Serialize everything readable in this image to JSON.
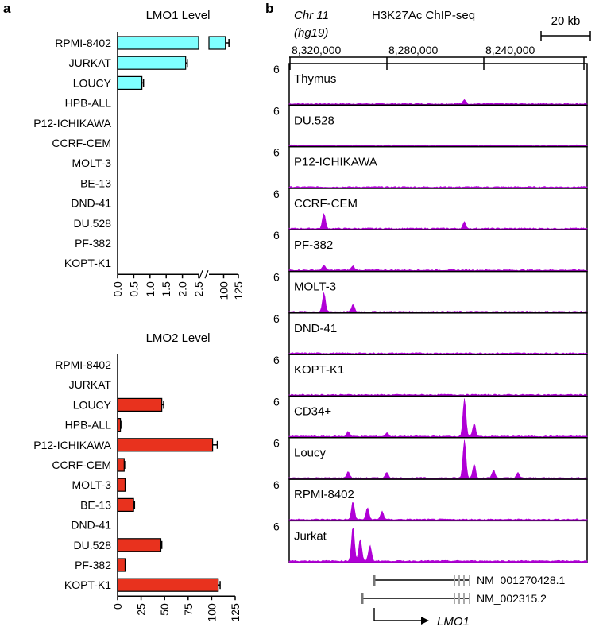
{
  "panel_a_label": "a",
  "panel_b_label": "b",
  "chart_data": [
    {
      "type": "bar",
      "orientation": "horizontal",
      "title": "LMO1 Level",
      "categories": [
        "RPMI-8402",
        "JURKAT",
        "LOUCY",
        "HPB-ALL",
        "P12-ICHIKAWA",
        "CCRF-CEM",
        "MOLT-3",
        "BE-13",
        "DND-41",
        "DU.528",
        "PF-382",
        "KOPT-K1"
      ],
      "values": [
        103,
        2.1,
        0.75,
        0,
        0,
        0,
        0,
        0,
        0,
        0,
        0,
        0
      ],
      "errors": [
        6,
        0.05,
        0.05,
        0,
        0,
        0,
        0,
        0,
        0,
        0,
        0,
        0
      ],
      "bar_color": "#7fffff",
      "axis_break": {
        "lower_range": [
          0,
          2.5
        ],
        "upper_range": [
          75,
          125
        ]
      },
      "xticks": [
        "0.0",
        "0.5",
        "1.0",
        "1.5",
        "2.0",
        "2.5",
        "100",
        "125"
      ],
      "grid": false
    },
    {
      "type": "bar",
      "orientation": "horizontal",
      "title": "LMO2 Level",
      "categories": [
        "RPMI-8402",
        "JURKAT",
        "LOUCY",
        "HPB-ALL",
        "P12-ICHIKAWA",
        "CCRF-CEM",
        "MOLT-3",
        "BE-13",
        "DND-41",
        "DU.528",
        "PF-382",
        "KOPT-K1"
      ],
      "values": [
        0,
        0,
        47,
        3,
        101,
        7,
        8,
        17,
        0,
        46,
        8,
        107
      ],
      "errors": [
        0,
        0,
        2,
        0.5,
        5,
        0.5,
        0.5,
        1,
        0,
        1,
        0.5,
        2
      ],
      "bar_color": "#e8321e",
      "xlim": [
        0,
        125
      ],
      "xticks": [
        "0",
        "25",
        "50",
        "75",
        "100",
        "125"
      ],
      "grid": false
    },
    {
      "type": "area",
      "title": "H3K27Ac ChIP-seq",
      "genome_label": "Chr 11",
      "build_label": "(hg19)",
      "scale_bar_label": "20 kb",
      "coordinates": [
        "8,320,000",
        "8,280,000",
        "8,240,000"
      ],
      "track_max": "6",
      "track_color": "#b000d6",
      "tracks": [
        {
          "name": "Thymus",
          "peaks": [
            [
              8248000,
              0.7
            ]
          ]
        },
        {
          "name": "DU.528",
          "peaks": []
        },
        {
          "name": "P12-ICHIKAWA",
          "peaks": []
        },
        {
          "name": "CCRF-CEM",
          "peaks": [
            [
              8306000,
              2.4
            ],
            [
              8248000,
              1.0
            ]
          ]
        },
        {
          "name": "PF-382",
          "peaks": [
            [
              8306000,
              0.8
            ],
            [
              8294000,
              0.7
            ]
          ]
        },
        {
          "name": "MOLT-3",
          "peaks": [
            [
              8306000,
              2.9
            ],
            [
              8294000,
              1.1
            ]
          ]
        },
        {
          "name": "DND-41",
          "peaks": []
        },
        {
          "name": "KOPT-K1",
          "peaks": []
        },
        {
          "name": "CD34+",
          "peaks": [
            [
              8248000,
              6.0
            ],
            [
              8244000,
              2.0
            ],
            [
              8296000,
              0.8
            ],
            [
              8280000,
              0.6
            ]
          ]
        },
        {
          "name": "Loucy",
          "peaks": [
            [
              8248000,
              6.0
            ],
            [
              8244000,
              2.2
            ],
            [
              8296000,
              1.0
            ],
            [
              8280000,
              0.9
            ],
            [
              8236000,
              1.2
            ],
            [
              8226000,
              0.8
            ]
          ]
        },
        {
          "name": "RPMI-8402",
          "peaks": [
            [
              8294000,
              2.8
            ],
            [
              8288000,
              1.8
            ],
            [
              8282000,
              1.3
            ]
          ]
        },
        {
          "name": "Jurkat",
          "peaks": [
            [
              8294000,
              5.5
            ],
            [
              8291000,
              3.5
            ],
            [
              8287000,
              2.5
            ]
          ]
        }
      ],
      "genes": [
        {
          "name": "NM_001270428.1"
        },
        {
          "name": "NM_002315.2"
        }
      ],
      "gene_symbol": "LMO1"
    }
  ]
}
